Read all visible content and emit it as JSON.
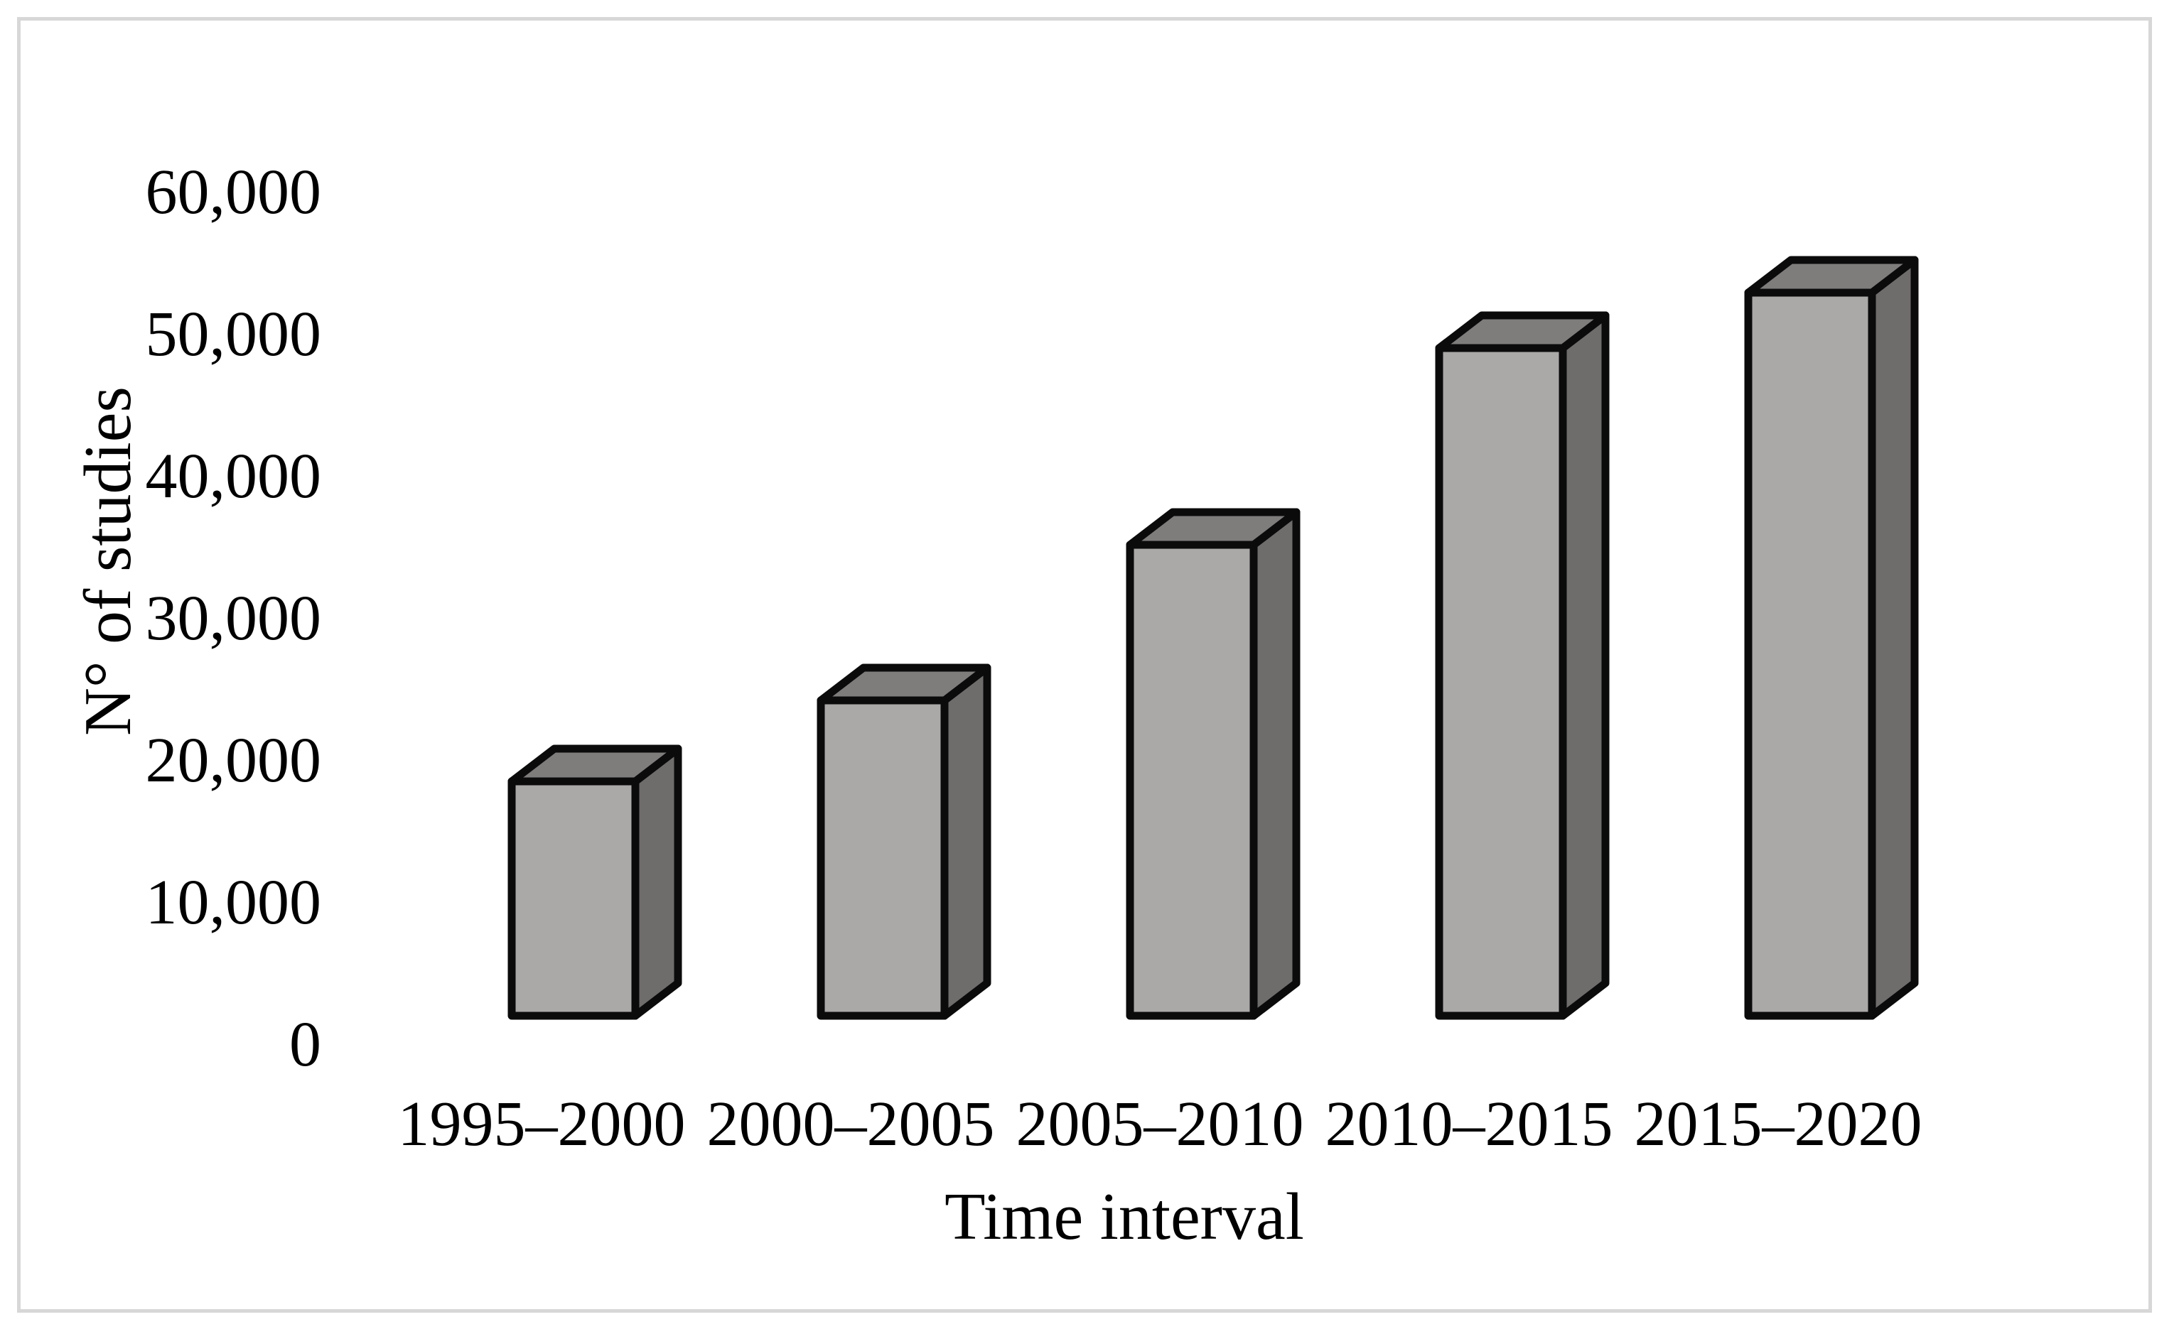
{
  "chart_data": {
    "type": "bar",
    "style": "3d-column",
    "title": "",
    "xlabel": "Time interval",
    "ylabel": "N° of studies",
    "categories": [
      "1995–2000",
      "2000–2005",
      "2005–2010",
      "2010–2015",
      "2015–2020"
    ],
    "values": [
      16500,
      22200,
      33150,
      47000,
      50900
    ],
    "ylim": [
      0,
      60000
    ],
    "ytick_step": 10000,
    "ytick_labels": [
      "0",
      "10,000",
      "20,000",
      "30,000",
      "40,000",
      "50,000",
      "60,000"
    ],
    "grid": false,
    "legend": "none",
    "colors": {
      "bar_front": "#aba8a8",
      "bar_side": "#6f6c6c",
      "bar_top": "#7f7c7c",
      "bar_border": "#0b0b0b",
      "text": "#000000",
      "frame_border": "#d7d7d7",
      "background": "#ffffff"
    }
  }
}
